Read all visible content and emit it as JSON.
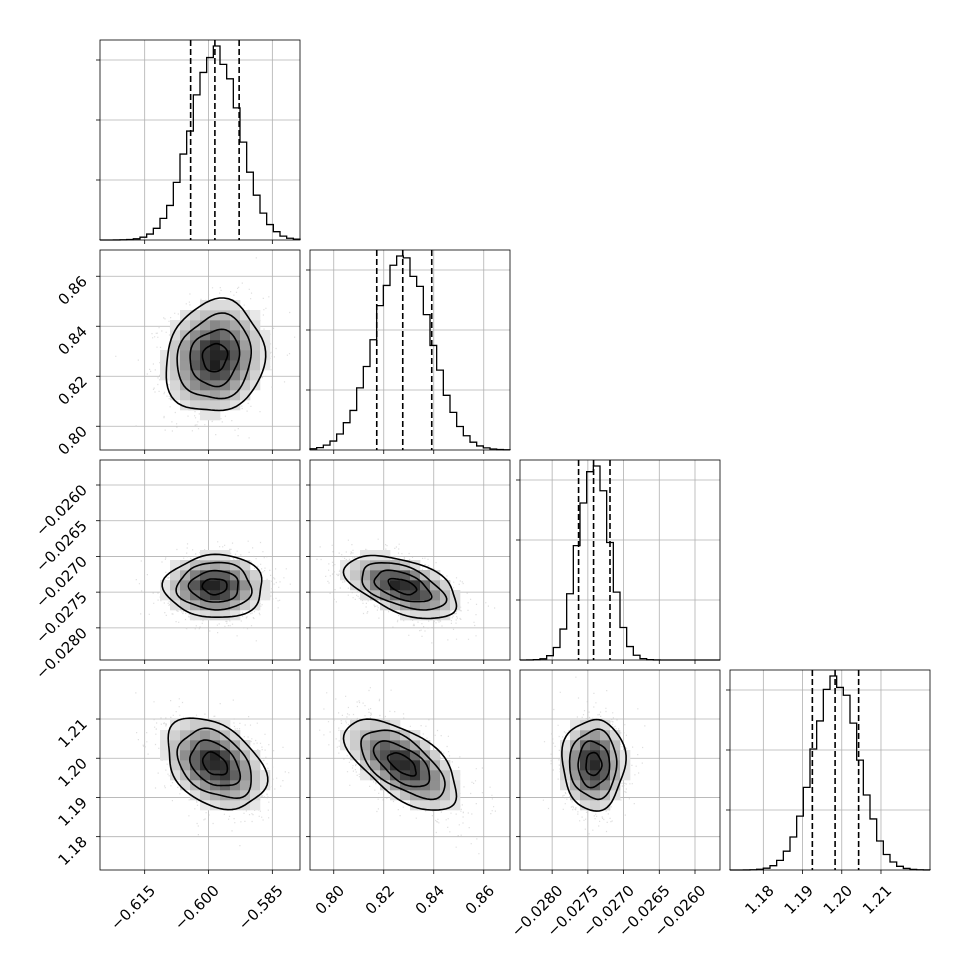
{
  "chart_data": {
    "type": "corner",
    "parameters": [
      {
        "range": [
          -0.6255,
          -0.5785
        ],
        "ticks": [
          -0.615,
          -0.6,
          -0.585
        ],
        "tick_labels": [
          "−0.615",
          "−0.600",
          "−0.585"
        ],
        "mean": -0.5985,
        "sigma": 0.0058,
        "quantiles": [
          -0.6042,
          -0.5985,
          -0.5928
        ]
      },
      {
        "range": [
          0.7905,
          0.8705
        ],
        "ticks": [
          0.8,
          0.82,
          0.84,
          0.86
        ],
        "tick_labels": [
          "0.80",
          "0.82",
          "0.84",
          "0.86"
        ],
        "mean": 0.8275,
        "sigma": 0.0112,
        "quantiles": [
          0.8172,
          0.8276,
          0.8392
        ]
      },
      {
        "range": [
          -0.02845,
          -0.02565
        ],
        "ticks": [
          -0.028,
          -0.0275,
          -0.027,
          -0.0265,
          -0.026
        ],
        "tick_labels": [
          "−0.0280",
          "−0.0275",
          "−0.0270",
          "−0.0265",
          "−0.0260"
        ],
        "mean": -0.02742,
        "sigma": 0.00022,
        "quantiles": [
          -0.02763,
          -0.02742,
          -0.02719
        ]
      },
      {
        "range": [
          1.1715,
          1.2225
        ],
        "ticks": [
          1.18,
          1.19,
          1.2,
          1.21
        ],
        "tick_labels": [
          "1.18",
          "1.19",
          "1.20",
          "1.21"
        ],
        "mean": 1.1985,
        "sigma": 0.0058,
        "quantiles": [
          1.1925,
          1.1983,
          1.2043
        ]
      }
    ],
    "correlations": [
      {
        "i": 1,
        "j": 0,
        "rho": 0.1
      },
      {
        "i": 2,
        "j": 0,
        "rho": 0.0
      },
      {
        "i": 2,
        "j": 1,
        "rho": -0.5
      },
      {
        "i": 3,
        "j": 0,
        "rho": -0.35
      },
      {
        "i": 3,
        "j": 1,
        "rho": -0.6
      },
      {
        "i": 3,
        "j": 2,
        "rho": 0.0
      }
    ],
    "contour_levels_sigma": [
      0.5,
      1.0,
      1.5,
      2.0
    ],
    "grid": true
  }
}
